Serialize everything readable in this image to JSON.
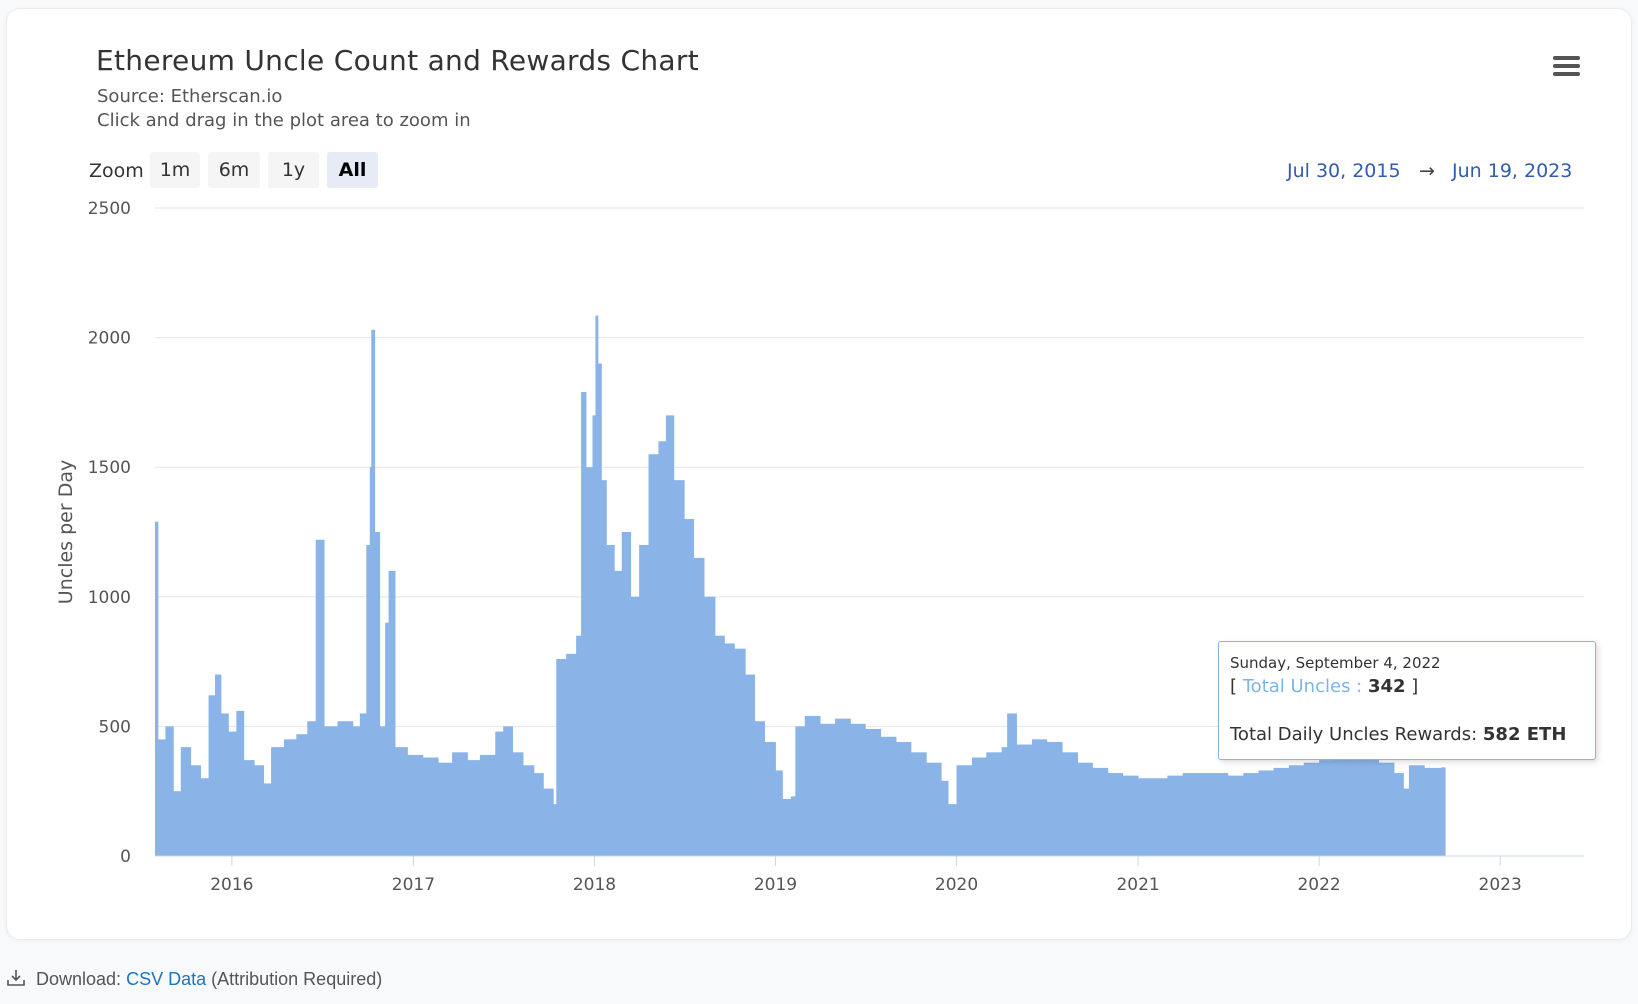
{
  "title": "Ethereum Uncle Count and Rewards Chart",
  "source": "Source: Etherscan.io",
  "hint": "Click and drag in the plot area to zoom in",
  "zoom": {
    "label": "Zoom",
    "buttons": [
      "1m",
      "6m",
      "1y",
      "All"
    ],
    "active": "All"
  },
  "range": {
    "from": "Jul 30, 2015",
    "arrow": "→",
    "to": "Jun 19, 2023"
  },
  "tooltip": {
    "date": "Sunday, September 4, 2022",
    "open_bracket": "[ ",
    "series_label": "Total Uncles :",
    "series_value": "342",
    "close_bracket": " ]",
    "reward_label": "Total Daily Uncles Rewards:",
    "reward_value": "582 ETH"
  },
  "footer": {
    "prefix": "Download:",
    "link": "CSV Data",
    "suffix": "(Attribution Required)"
  },
  "colors": {
    "series": "#7cb5ec",
    "grid": "#e6e6e6",
    "range_text": "#335cad",
    "link": "#1e73be"
  },
  "icons": {
    "menu": "hamburger-menu-icon",
    "download": "download-icon"
  },
  "chart_data": {
    "type": "bar",
    "title": "Ethereum Uncle Count and Rewards Chart",
    "ylabel": "Uncles per Day",
    "xlabel": "",
    "series": [
      {
        "name": "Total Uncles"
      }
    ],
    "ylim": [
      0,
      2500
    ],
    "yticks": [
      0,
      500,
      1000,
      1500,
      2000,
      2500
    ],
    "xlim": [
      "2015-07-30",
      "2023-06-19"
    ],
    "xticks": [
      "2016",
      "2017",
      "2018",
      "2019",
      "2020",
      "2021",
      "2022",
      "2023"
    ],
    "grid": true,
    "points": [
      [
        "2015-07-30",
        1290
      ],
      [
        "2015-08-05",
        450
      ],
      [
        "2015-08-20",
        500
      ],
      [
        "2015-09-05",
        250
      ],
      [
        "2015-09-20",
        420
      ],
      [
        "2015-10-10",
        350
      ],
      [
        "2015-10-30",
        300
      ],
      [
        "2015-11-15",
        620
      ],
      [
        "2015-11-28",
        700
      ],
      [
        "2015-12-10",
        550
      ],
      [
        "2015-12-25",
        480
      ],
      [
        "2016-01-10",
        560
      ],
      [
        "2016-01-25",
        370
      ],
      [
        "2016-02-15",
        350
      ],
      [
        "2016-03-05",
        280
      ],
      [
        "2016-03-20",
        420
      ],
      [
        "2016-04-15",
        450
      ],
      [
        "2016-05-10",
        470
      ],
      [
        "2016-06-01",
        520
      ],
      [
        "2016-06-18",
        1220
      ],
      [
        "2016-07-05",
        500
      ],
      [
        "2016-08-01",
        520
      ],
      [
        "2016-09-01",
        500
      ],
      [
        "2016-09-15",
        550
      ],
      [
        "2016-09-28",
        1200
      ],
      [
        "2016-10-05",
        1500
      ],
      [
        "2016-10-08",
        2030
      ],
      [
        "2016-10-15",
        1250
      ],
      [
        "2016-10-25",
        500
      ],
      [
        "2016-11-05",
        900
      ],
      [
        "2016-11-12",
        1100
      ],
      [
        "2016-11-25",
        420
      ],
      [
        "2016-12-20",
        390
      ],
      [
        "2017-01-20",
        380
      ],
      [
        "2017-02-20",
        360
      ],
      [
        "2017-03-20",
        400
      ],
      [
        "2017-04-20",
        370
      ],
      [
        "2017-05-15",
        390
      ],
      [
        "2017-06-15",
        480
      ],
      [
        "2017-07-01",
        500
      ],
      [
        "2017-07-20",
        400
      ],
      [
        "2017-08-10",
        350
      ],
      [
        "2017-09-01",
        320
      ],
      [
        "2017-09-20",
        260
      ],
      [
        "2017-10-10",
        200
      ],
      [
        "2017-10-16",
        760
      ],
      [
        "2017-11-05",
        780
      ],
      [
        "2017-11-25",
        850
      ],
      [
        "2017-12-05",
        1790
      ],
      [
        "2017-12-15",
        1500
      ],
      [
        "2017-12-28",
        1700
      ],
      [
        "2018-01-03",
        2085
      ],
      [
        "2018-01-08",
        1900
      ],
      [
        "2018-01-15",
        1450
      ],
      [
        "2018-01-25",
        1200
      ],
      [
        "2018-02-10",
        1100
      ],
      [
        "2018-02-25",
        1250
      ],
      [
        "2018-03-15",
        1000
      ],
      [
        "2018-04-01",
        1200
      ],
      [
        "2018-04-20",
        1550
      ],
      [
        "2018-05-10",
        1600
      ],
      [
        "2018-05-25",
        1700
      ],
      [
        "2018-06-10",
        1450
      ],
      [
        "2018-07-01",
        1300
      ],
      [
        "2018-07-20",
        1150
      ],
      [
        "2018-08-10",
        1000
      ],
      [
        "2018-09-01",
        850
      ],
      [
        "2018-09-20",
        820
      ],
      [
        "2018-10-10",
        800
      ],
      [
        "2018-11-01",
        700
      ],
      [
        "2018-11-20",
        520
      ],
      [
        "2018-12-10",
        440
      ],
      [
        "2019-01-01",
        330
      ],
      [
        "2019-01-15",
        220
      ],
      [
        "2019-02-01",
        230
      ],
      [
        "2019-02-10",
        500
      ],
      [
        "2019-03-01",
        540
      ],
      [
        "2019-04-01",
        510
      ],
      [
        "2019-05-01",
        530
      ],
      [
        "2019-06-01",
        510
      ],
      [
        "2019-07-01",
        490
      ],
      [
        "2019-08-01",
        460
      ],
      [
        "2019-09-01",
        440
      ],
      [
        "2019-10-01",
        400
      ],
      [
        "2019-11-01",
        360
      ],
      [
        "2019-12-01",
        290
      ],
      [
        "2019-12-15",
        200
      ],
      [
        "2020-01-01",
        350
      ],
      [
        "2020-02-01",
        380
      ],
      [
        "2020-03-01",
        400
      ],
      [
        "2020-04-01",
        420
      ],
      [
        "2020-04-12",
        550
      ],
      [
        "2020-05-01",
        430
      ],
      [
        "2020-06-01",
        450
      ],
      [
        "2020-07-01",
        440
      ],
      [
        "2020-08-01",
        400
      ],
      [
        "2020-09-01",
        360
      ],
      [
        "2020-10-01",
        340
      ],
      [
        "2020-11-01",
        320
      ],
      [
        "2020-12-01",
        310
      ],
      [
        "2021-01-01",
        300
      ],
      [
        "2021-02-01",
        300
      ],
      [
        "2021-03-01",
        310
      ],
      [
        "2021-04-01",
        320
      ],
      [
        "2021-05-01",
        320
      ],
      [
        "2021-06-01",
        320
      ],
      [
        "2021-07-01",
        310
      ],
      [
        "2021-08-01",
        320
      ],
      [
        "2021-09-01",
        330
      ],
      [
        "2021-10-01",
        340
      ],
      [
        "2021-11-01",
        350
      ],
      [
        "2021-12-01",
        360
      ],
      [
        "2022-01-01",
        370
      ],
      [
        "2022-02-01",
        380
      ],
      [
        "2022-03-01",
        380
      ],
      [
        "2022-04-01",
        380
      ],
      [
        "2022-05-01",
        360
      ],
      [
        "2022-06-01",
        320
      ],
      [
        "2022-06-20",
        260
      ],
      [
        "2022-07-01",
        350
      ],
      [
        "2022-08-01",
        340
      ],
      [
        "2022-09-04",
        342
      ]
    ]
  }
}
